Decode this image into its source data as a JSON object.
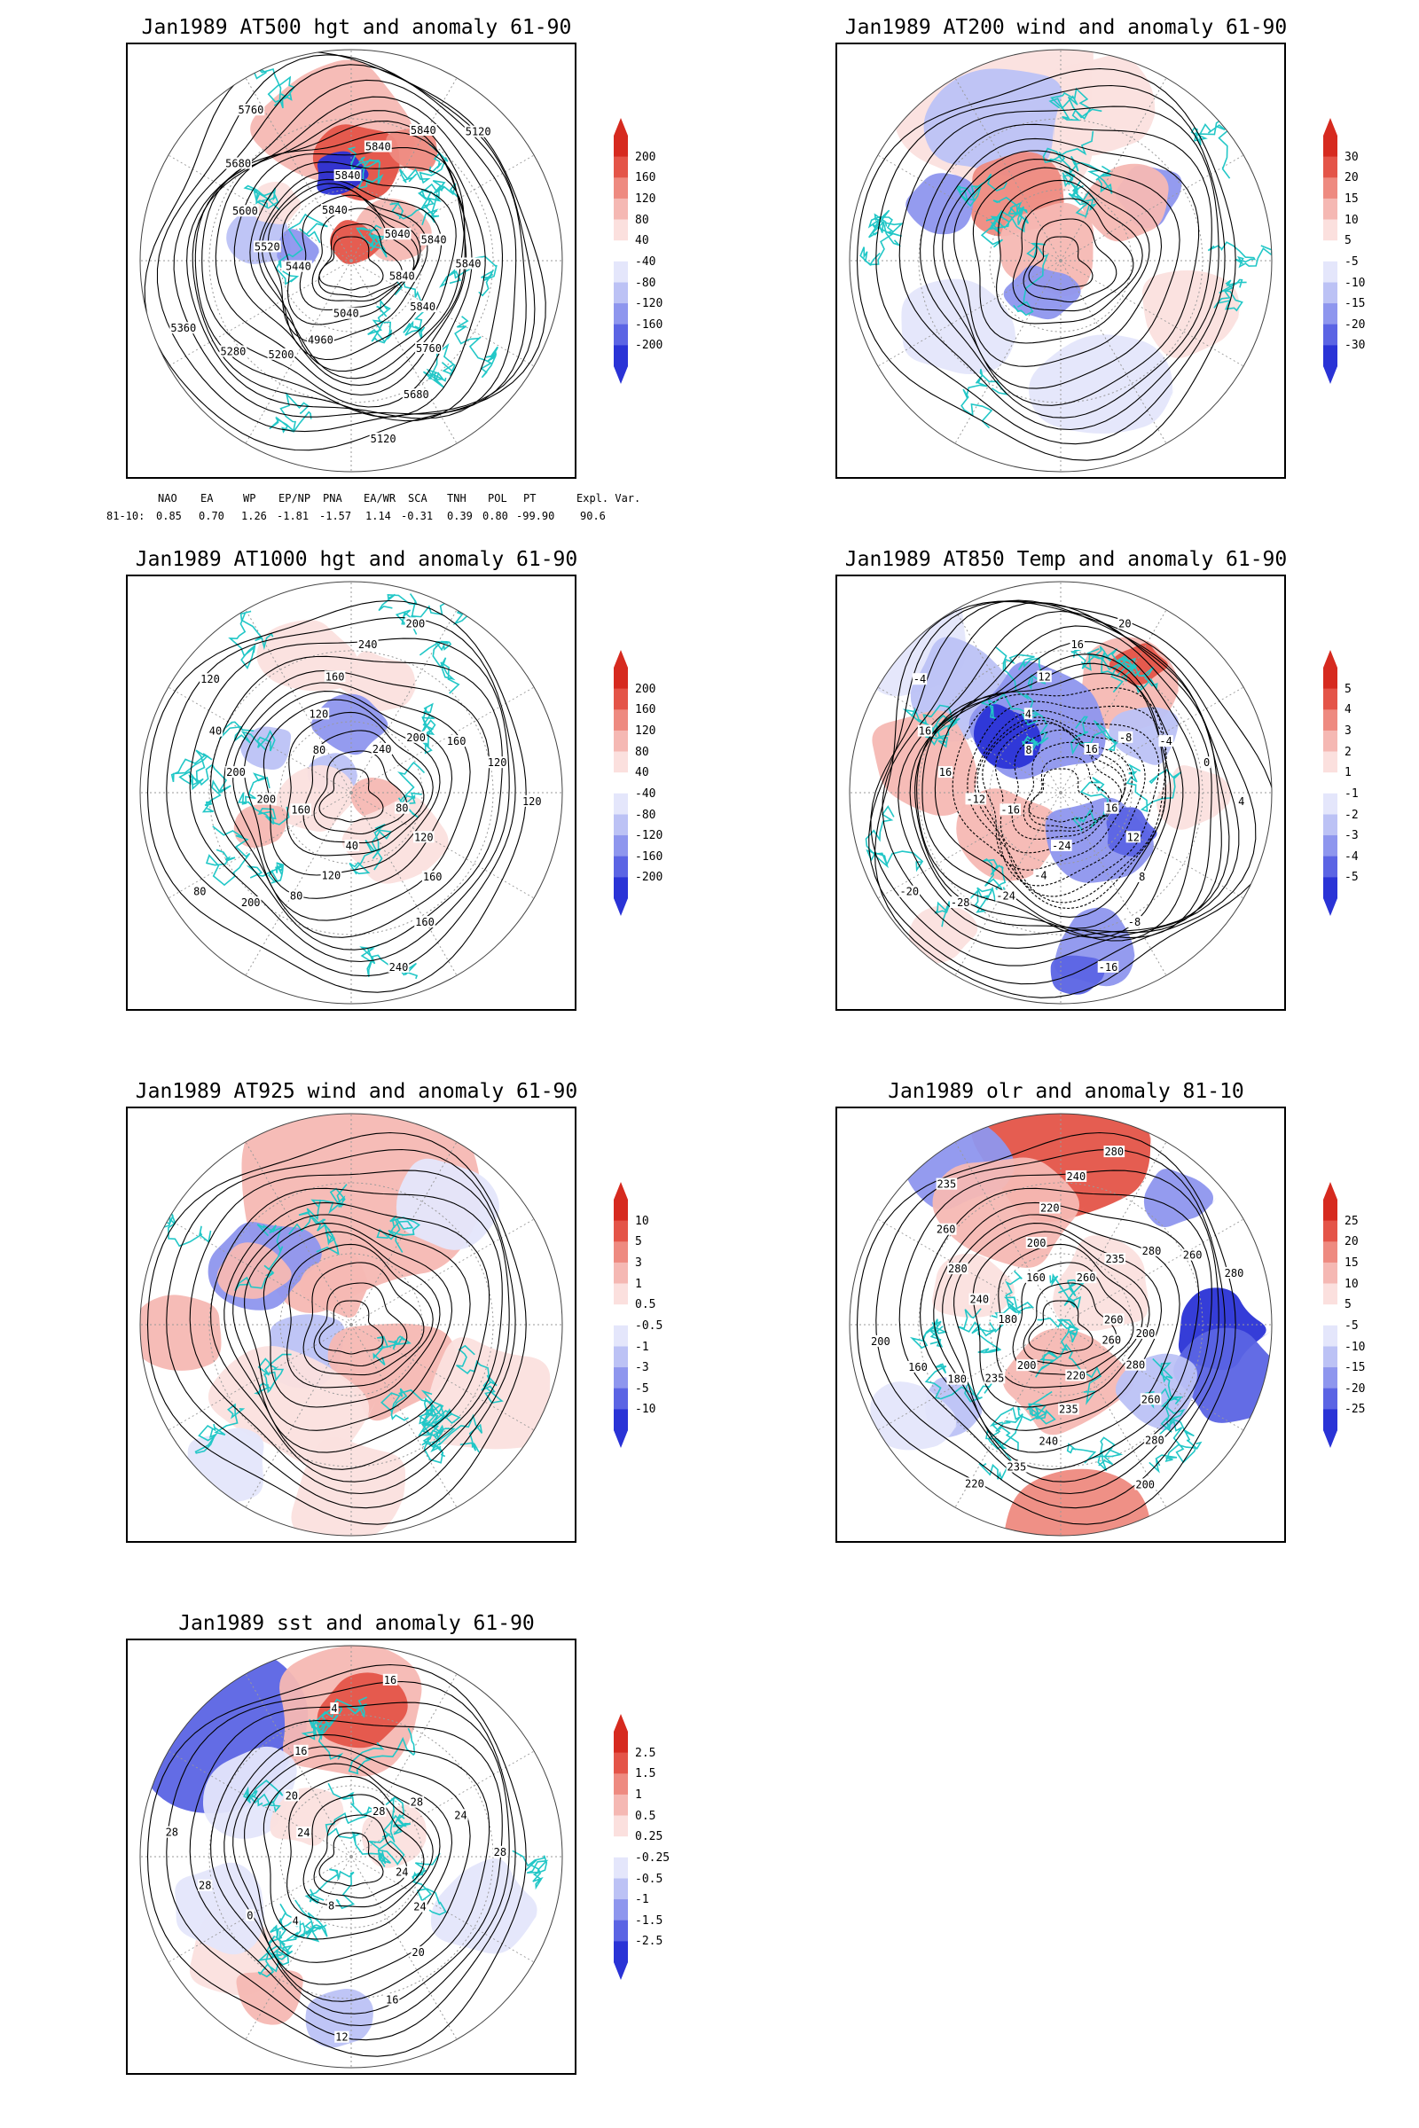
{
  "panels": [
    {
      "id": "p1",
      "title": "Jan1989 AT500 hgt and anomaly 61-90",
      "colorbar": [
        "200",
        "160",
        "120",
        "80",
        "40",
        "-40",
        "-80",
        "-120",
        "-160",
        "-200"
      ],
      "contour_labels": [
        "5840",
        "5840",
        "5760",
        "5680",
        "5120",
        "5040",
        "4960",
        "5200",
        "5280",
        "5360",
        "5440",
        "5520",
        "5600",
        "5680",
        "5760",
        "5840",
        "5840",
        "5840",
        "5840",
        "5120",
        "5040",
        "5840",
        "5840"
      ]
    },
    {
      "id": "p2",
      "title": "Jan1989 AT200 wind and anomaly 61-90",
      "colorbar": [
        "30",
        "20",
        "15",
        "10",
        "5",
        "-5",
        "-10",
        "-15",
        "-20",
        "-30"
      ],
      "contour_labels": []
    },
    {
      "id": "p3",
      "title": "Jan1989 AT1000 hgt and anomaly 61-90",
      "colorbar": [
        "200",
        "160",
        "120",
        "80",
        "40",
        "-40",
        "-80",
        "-120",
        "-160",
        "-200"
      ],
      "contour_labels": [
        "80",
        "120",
        "160",
        "160",
        "240",
        "40",
        "120",
        "80",
        "200",
        "80",
        "160",
        "200",
        "200",
        "40",
        "120",
        "80",
        "120",
        "160",
        "240",
        "200",
        "240",
        "200",
        "160",
        "120",
        "120"
      ]
    },
    {
      "id": "p4",
      "title": "Jan1989 AT850 Temp and anomaly 61-90",
      "colorbar": [
        "5",
        "4",
        "3",
        "2",
        "1",
        "-1",
        "-2",
        "-3",
        "-4",
        "-5"
      ],
      "contour_labels": [
        "16",
        "12",
        "8",
        "-8",
        "-16",
        "-24",
        "-4",
        "-24",
        "-28",
        "-20",
        "-16",
        "-12",
        "16",
        "16",
        "-4",
        "8",
        "4",
        "12",
        "16",
        "20",
        "16",
        "-8",
        "-4",
        "0",
        "4"
      ]
    },
    {
      "id": "p5",
      "title": "Jan1989 AT925 wind and anomaly 61-90",
      "colorbar": [
        "10",
        "5",
        "3",
        "1",
        "0.5",
        "-0.5",
        "-1",
        "-3",
        "-5",
        "-10"
      ],
      "contour_labels": []
    },
    {
      "id": "p6",
      "title": "Jan1989 olr and anomaly 81-10",
      "colorbar": [
        "25",
        "20",
        "15",
        "10",
        "5",
        "-5",
        "-10",
        "-15",
        "-20",
        "-25"
      ],
      "contour_labels": [
        "260",
        "280",
        "260",
        "280",
        "200",
        "220",
        "235",
        "240",
        "235",
        "220",
        "200",
        "235",
        "180",
        "160",
        "200",
        "180",
        "240",
        "280",
        "260",
        "235",
        "160",
        "200",
        "220",
        "240",
        "280",
        "260",
        "235",
        "280",
        "260",
        "280",
        "260",
        "200"
      ]
    },
    {
      "id": "p7",
      "title": "Jan1989 sst and anomaly 61-90",
      "colorbar": [
        "2.5",
        "1.5",
        "1",
        "0.5",
        "0.25",
        "-0.25",
        "-0.5",
        "-1",
        "-1.5",
        "-2.5"
      ],
      "contour_labels": [
        "24",
        "24",
        "20",
        "16",
        "12",
        "8",
        "4",
        "0",
        "28",
        "28",
        "24",
        "20",
        "16",
        "4",
        "16",
        "28",
        "28",
        "24",
        "28"
      ]
    }
  ],
  "teleconnection": {
    "headers": [
      "NAO",
      "EA",
      "WP",
      "EP/NP",
      "PNA",
      "EA/WR",
      "SCA",
      "TNH",
      "POL",
      "PT",
      "Expl. Var."
    ],
    "row_label": "81-10:",
    "values": [
      "0.85",
      "0.70",
      "1.26",
      "-1.81",
      "-1.57",
      "1.14",
      "-0.31",
      "0.39",
      "0.80",
      "-99.90",
      "90.6"
    ]
  },
  "colors": {
    "red_ramp": [
      "#fbe0de",
      "#f5b8b3",
      "#ee8a80",
      "#e45448",
      "#d62a1f"
    ],
    "blue_ramp": [
      "#e4e6fb",
      "#bcc2f5",
      "#8e96ee",
      "#5b64e4",
      "#2a33d6"
    ],
    "contour": "#000000",
    "coast": "#22c7c7",
    "graticule": "#9a9a9a"
  }
}
